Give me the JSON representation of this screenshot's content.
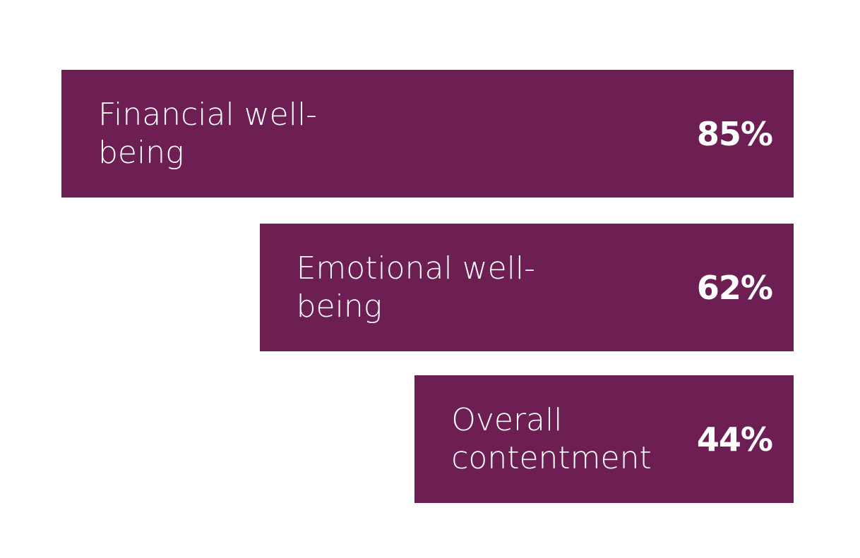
{
  "chart_data": {
    "type": "bar",
    "categories": [
      "Financial well-being",
      "Emotional well-being",
      "Overall contentment"
    ],
    "values": [
      85,
      62,
      44
    ],
    "value_labels": [
      "85%",
      "62%",
      "44%"
    ],
    "color": "#6d1f53"
  }
}
